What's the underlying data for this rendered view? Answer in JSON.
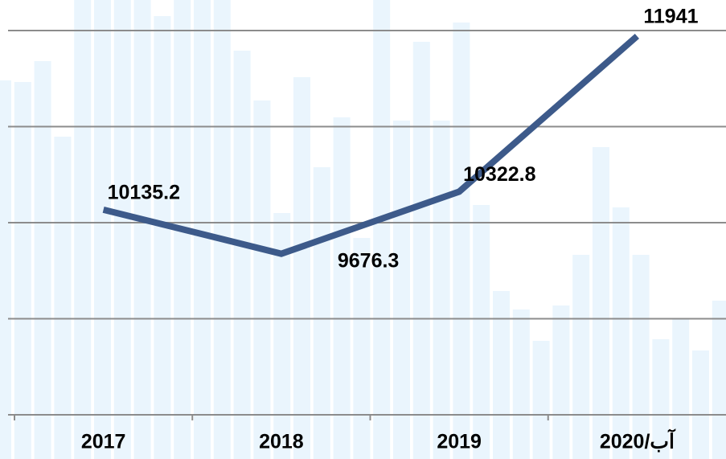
{
  "chart_data": {
    "type": "line",
    "categories": [
      "2017",
      "2018",
      "2019",
      "2020/آب"
    ],
    "values": [
      10135.2,
      9676.3,
      10322.8,
      11941
    ],
    "color": "#3d5a8a",
    "ylim": [
      8000,
      12000
    ],
    "yticks": [
      8000,
      9000,
      10000,
      11000,
      12000
    ],
    "grid": true
  }
}
